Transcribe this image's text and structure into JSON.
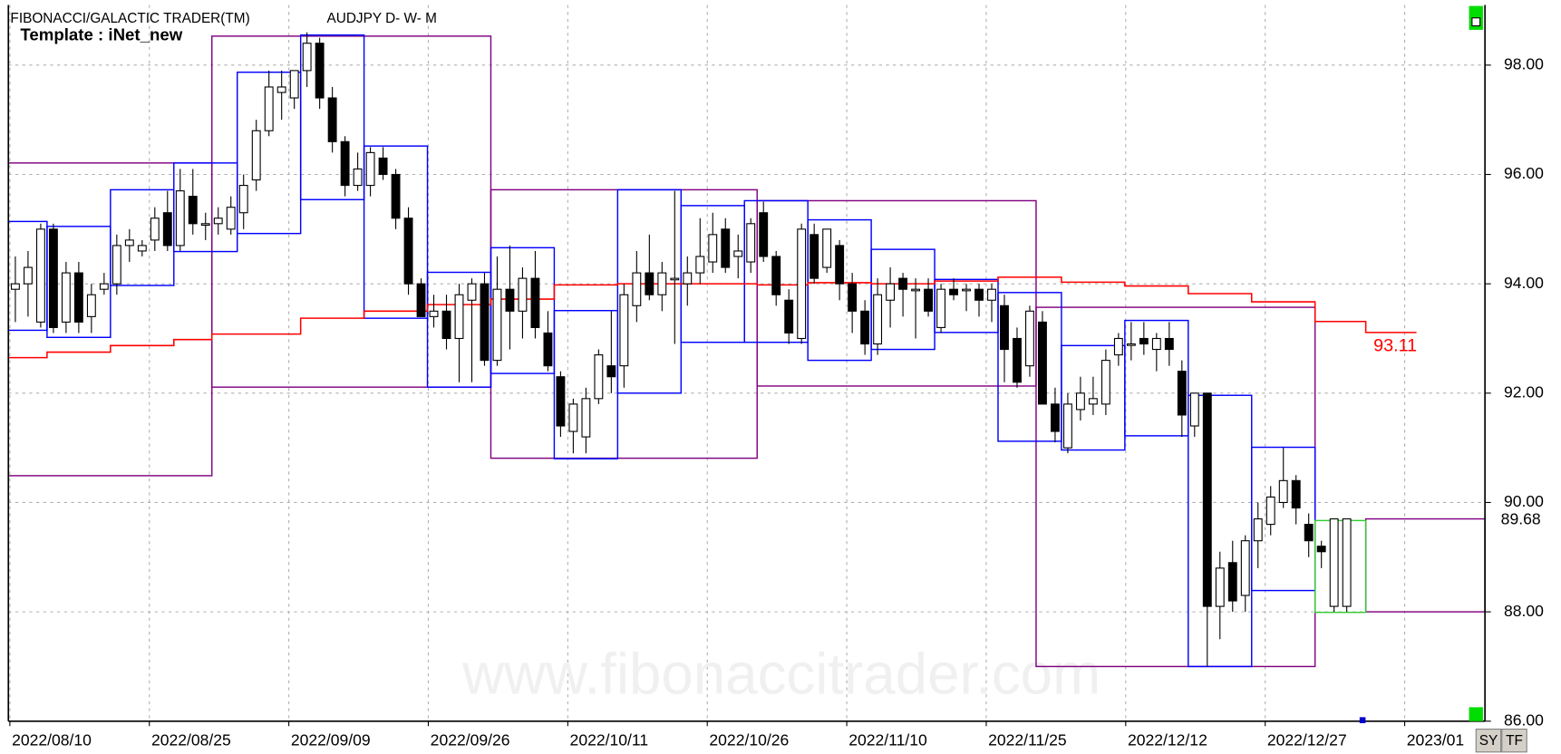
{
  "chart_data": {
    "type": "candlestick",
    "title": "FIBONACCI/GALACTIC TRADER(TM)",
    "subtitle": "AUDJPY D- W- M",
    "template": "Template : iNet_new",
    "watermark": "www.fibonaccitrader.com",
    "buttons": [
      "SY",
      "TF"
    ],
    "xlim": [
      -0.55,
      115.9
    ],
    "xticks": [
      {
        "value": 0,
        "label": "2022/08/10"
      },
      {
        "value": 11,
        "label": "2022/08/25"
      },
      {
        "value": 22,
        "label": "2022/09/09"
      },
      {
        "value": 33,
        "label": "2022/09/26"
      },
      {
        "value": 44,
        "label": "2022/10/11"
      },
      {
        "value": 55,
        "label": "2022/10/26"
      },
      {
        "value": 66,
        "label": "2022/11/10"
      },
      {
        "value": 77,
        "label": "2022/11/25"
      },
      {
        "value": 88,
        "label": "2022/12/12"
      },
      {
        "value": 99,
        "label": "2022/12/27"
      },
      {
        "value": 110,
        "label": "2023/01"
      }
    ],
    "ylim": [
      86,
      99.1
    ],
    "yticks": [
      {
        "value": 86,
        "label": "86.00"
      },
      {
        "value": 88,
        "label": "88.00"
      },
      {
        "value": 90,
        "label": "90.00"
      },
      {
        "value": 92,
        "label": "92.00"
      },
      {
        "value": 94,
        "label": "94.00"
      },
      {
        "value": 96,
        "label": "96.00"
      },
      {
        "value": 98,
        "label": "98.00"
      }
    ],
    "grid": true,
    "up_color": "#ffffff",
    "down_color": "#000000",
    "ohlc": [
      [
        93.9,
        94.5,
        93.3,
        94.0
      ],
      [
        94.0,
        94.6,
        93.4,
        94.3
      ],
      [
        93.3,
        95.1,
        93.2,
        95.0
      ],
      [
        95.0,
        95.1,
        93.1,
        93.2
      ],
      [
        93.3,
        94.4,
        93.1,
        94.2
      ],
      [
        94.2,
        94.4,
        93.1,
        93.3
      ],
      [
        93.4,
        94.0,
        93.1,
        93.8
      ],
      [
        93.9,
        94.2,
        93.8,
        94.0
      ],
      [
        94.0,
        94.9,
        93.8,
        94.7
      ],
      [
        94.7,
        95.0,
        94.4,
        94.8
      ],
      [
        94.6,
        94.8,
        94.5,
        94.7
      ],
      [
        94.8,
        95.4,
        94.6,
        95.2
      ],
      [
        95.3,
        95.7,
        94.6,
        94.7
      ],
      [
        94.7,
        96.1,
        94.6,
        95.7
      ],
      [
        95.6,
        96.1,
        94.9,
        95.1
      ],
      [
        95.1,
        95.3,
        94.8,
        95.1
      ],
      [
        95.1,
        95.4,
        94.9,
        95.2
      ],
      [
        95.0,
        95.6,
        94.9,
        95.4
      ],
      [
        95.3,
        96.0,
        95.0,
        95.8
      ],
      [
        95.9,
        97.0,
        95.7,
        96.8
      ],
      [
        96.8,
        97.9,
        96.7,
        97.6
      ],
      [
        97.5,
        97.9,
        97.0,
        97.6
      ],
      [
        97.4,
        97.9,
        97.2,
        97.9
      ],
      [
        97.9,
        98.6,
        97.6,
        98.4
      ],
      [
        98.4,
        98.5,
        97.2,
        97.4
      ],
      [
        97.4,
        97.6,
        96.4,
        96.6
      ],
      [
        96.6,
        96.7,
        95.6,
        95.8
      ],
      [
        95.8,
        96.4,
        95.7,
        96.1
      ],
      [
        95.8,
        96.5,
        95.6,
        96.4
      ],
      [
        96.3,
        96.5,
        95.9,
        96.0
      ],
      [
        96.0,
        96.1,
        95.0,
        95.2
      ],
      [
        95.2,
        95.4,
        93.8,
        94.0
      ],
      [
        94.0,
        94.1,
        93.4,
        93.4
      ],
      [
        93.4,
        93.8,
        93.2,
        93.5
      ],
      [
        93.5,
        93.8,
        92.8,
        93.0
      ],
      [
        93.0,
        94.0,
        92.2,
        93.8
      ],
      [
        93.7,
        94.1,
        92.2,
        94.0
      ],
      [
        94.0,
        94.2,
        92.5,
        92.6
      ],
      [
        92.6,
        94.5,
        92.5,
        93.9
      ],
      [
        93.9,
        94.7,
        92.8,
        93.5
      ],
      [
        93.5,
        94.3,
        93.0,
        94.1
      ],
      [
        94.1,
        94.6,
        93.0,
        93.2
      ],
      [
        93.1,
        93.5,
        92.4,
        92.5
      ],
      [
        92.3,
        92.4,
        91.2,
        91.4
      ],
      [
        91.3,
        91.9,
        90.9,
        91.8
      ],
      [
        91.2,
        92.1,
        90.9,
        91.9
      ],
      [
        91.9,
        92.8,
        91.8,
        92.7
      ],
      [
        92.5,
        93.5,
        92.0,
        92.3
      ],
      [
        92.5,
        94.0,
        92.1,
        93.8
      ],
      [
        93.6,
        94.6,
        93.3,
        94.2
      ],
      [
        94.2,
        94.9,
        93.7,
        93.8
      ],
      [
        93.8,
        94.4,
        93.5,
        94.2
      ],
      [
        94.1,
        95.7,
        92.9,
        94.1
      ],
      [
        94.0,
        94.5,
        93.6,
        94.2
      ],
      [
        94.2,
        95.2,
        94.0,
        94.5
      ],
      [
        94.4,
        95.3,
        94.2,
        94.9
      ],
      [
        95.0,
        95.2,
        94.2,
        94.3
      ],
      [
        94.5,
        94.9,
        94.1,
        94.6
      ],
      [
        94.4,
        95.2,
        94.2,
        95.1
      ],
      [
        95.3,
        95.5,
        94.4,
        94.5
      ],
      [
        94.5,
        94.6,
        93.6,
        93.8
      ],
      [
        93.7,
        93.9,
        92.9,
        93.1
      ],
      [
        93.0,
        95.1,
        92.9,
        95.0
      ],
      [
        94.9,
        95.1,
        94.0,
        94.1
      ],
      [
        94.3,
        95.0,
        94.2,
        95.0
      ],
      [
        94.7,
        94.8,
        93.7,
        94.0
      ],
      [
        94.0,
        94.2,
        93.1,
        93.5
      ],
      [
        93.5,
        93.7,
        92.7,
        92.9
      ],
      [
        92.9,
        94.1,
        92.7,
        93.8
      ],
      [
        93.7,
        94.3,
        93.2,
        94.0
      ],
      [
        94.1,
        94.2,
        93.4,
        93.9
      ],
      [
        93.9,
        94.1,
        93.0,
        93.9
      ],
      [
        93.9,
        94.1,
        93.4,
        93.5
      ],
      [
        93.2,
        94.0,
        93.1,
        93.9
      ],
      [
        93.9,
        94.1,
        93.7,
        93.8
      ],
      [
        93.9,
        94.0,
        93.5,
        93.9
      ],
      [
        93.9,
        94.0,
        93.4,
        93.7
      ],
      [
        93.7,
        94.0,
        93.3,
        93.9
      ],
      [
        93.6,
        93.8,
        92.2,
        92.8
      ],
      [
        93.0,
        93.2,
        92.1,
        92.2
      ],
      [
        92.5,
        93.6,
        92.3,
        93.5
      ],
      [
        93.3,
        93.5,
        91.8,
        91.8
      ],
      [
        91.8,
        92.1,
        91.1,
        91.3
      ],
      [
        91.0,
        92.0,
        90.9,
        91.8
      ],
      [
        91.7,
        92.3,
        91.5,
        92.0
      ],
      [
        91.8,
        92.3,
        91.6,
        91.9
      ],
      [
        91.8,
        92.8,
        91.6,
        92.6
      ],
      [
        92.7,
        93.1,
        92.5,
        93.0
      ],
      [
        92.9,
        93.3,
        92.6,
        92.9
      ],
      [
        93.0,
        93.3,
        92.7,
        92.9
      ],
      [
        92.8,
        93.1,
        92.4,
        93.0
      ],
      [
        93.0,
        93.3,
        92.5,
        92.8
      ],
      [
        92.4,
        92.6,
        91.2,
        91.6
      ],
      [
        91.4,
        92.0,
        91.2,
        92.0
      ],
      [
        92.0,
        92.0,
        87.0,
        88.1
      ],
      [
        88.1,
        89.1,
        87.5,
        88.8
      ],
      [
        88.9,
        89.3,
        88.0,
        88.2
      ],
      [
        88.3,
        89.4,
        88.0,
        89.3
      ],
      [
        89.3,
        90.0,
        88.8,
        89.7
      ],
      [
        89.6,
        90.3,
        89.4,
        90.1
      ],
      [
        90.0,
        91.0,
        89.9,
        90.4
      ],
      [
        90.4,
        90.5,
        89.6,
        89.9
      ],
      [
        89.6,
        89.8,
        89.0,
        89.3
      ],
      [
        89.2,
        89.3,
        88.8,
        89.1
      ],
      [
        88.1,
        89.7,
        88.0,
        89.7
      ],
      [
        88.1,
        89.7,
        88.0,
        89.7
      ]
    ],
    "weekly_color": "#0000ff",
    "weekly_boxes": [
      [
        -0.55,
        2.5,
        95.14,
        93.15
      ],
      [
        2.5,
        7.5,
        95.05,
        93.02
      ],
      [
        7.5,
        12.5,
        95.72,
        93.97
      ],
      [
        12.5,
        17.5,
        96.21,
        94.59
      ],
      [
        17.5,
        22.5,
        97.87,
        94.92
      ],
      [
        22.5,
        27.5,
        98.55,
        95.54
      ],
      [
        27.5,
        32.5,
        96.52,
        93.37
      ],
      [
        32.5,
        37.5,
        94.21,
        92.11
      ],
      [
        37.5,
        42.5,
        94.66,
        92.36
      ],
      [
        42.5,
        47.5,
        93.51,
        90.8
      ],
      [
        47.5,
        52.5,
        95.72,
        92.0
      ],
      [
        52.5,
        57.5,
        95.43,
        92.93
      ],
      [
        57.5,
        62.5,
        95.52,
        92.93
      ],
      [
        62.5,
        67.5,
        95.17,
        92.6
      ],
      [
        67.5,
        72.5,
        94.63,
        92.8
      ],
      [
        72.5,
        77.5,
        94.08,
        93.11
      ],
      [
        77.5,
        82.5,
        93.84,
        91.12
      ],
      [
        82.5,
        87.5,
        92.87,
        90.96
      ],
      [
        87.5,
        92.5,
        93.33,
        91.22
      ],
      [
        92.5,
        97.5,
        91.96,
        87.0
      ],
      [
        97.5,
        102.5,
        91.01,
        88.39
      ]
    ],
    "current_week_color": "#33cc33",
    "current_week_box": [
      102.5,
      106.5,
      89.67,
      87.99
    ],
    "monthly_color": "#800080",
    "monthly_boxes": [
      [
        -0.55,
        15.5,
        96.21,
        90.49
      ],
      [
        15.5,
        37.5,
        98.53,
        92.11
      ],
      [
        37.5,
        58.5,
        95.72,
        90.81
      ],
      [
        58.5,
        80.5,
        95.52,
        92.13
      ],
      [
        80.5,
        102.5,
        93.57,
        87.0
      ],
      [
        106.5,
        115.9,
        89.7,
        88.0
      ]
    ],
    "line_color": "#ff0000",
    "line_x": [
      -0.55,
      2.5,
      7.5,
      12.5,
      15.5,
      22.5,
      27.5,
      32.5,
      37.5,
      42.5,
      47.5,
      58.5,
      62.5,
      67.5,
      72.5,
      77.5,
      82.5,
      87.5,
      92.5,
      97.5,
      102.5,
      106.5,
      110.5
    ],
    "line_values": [
      92.65,
      92.75,
      92.87,
      92.98,
      93.08,
      93.37,
      93.5,
      93.62,
      93.72,
      93.98,
      94.0,
      93.98,
      94.02,
      94.0,
      94.05,
      94.12,
      94.03,
      93.96,
      93.82,
      93.67,
      93.31,
      93.11,
      93.11
    ],
    "line_label": {
      "value": 93.11,
      "label": "93.11"
    },
    "last_price": {
      "value": 89.68,
      "label": "89.68"
    }
  }
}
